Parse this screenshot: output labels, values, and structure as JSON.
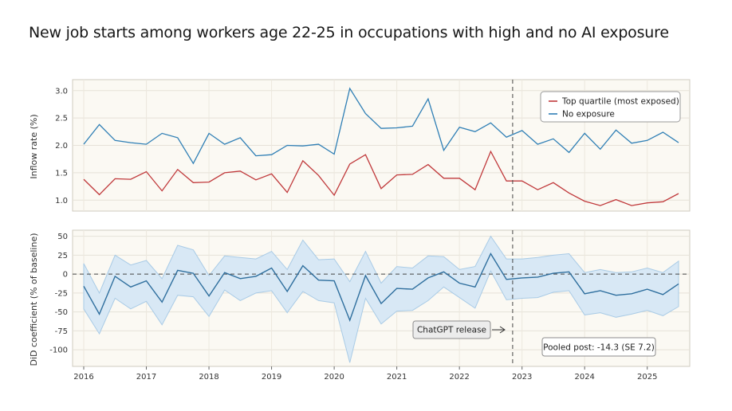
{
  "title": "New job starts among workers age 22-25 in occupations with high and no AI exposure",
  "colors": {
    "top": "#c0393b",
    "none": "#2f7fb5",
    "band": "#cfe3f4",
    "panel": "#fbf9f3",
    "grid": "#e4e1d7"
  },
  "chart_data": [
    {
      "type": "line",
      "ylabel": "Inflow rate (%)",
      "ylim": [
        0.8,
        3.2
      ],
      "yticks": [
        "1.0",
        "1.5",
        "2.0",
        "2.5",
        "3.0"
      ],
      "x": [
        2016.0,
        2016.25,
        2016.5,
        2016.75,
        2017.0,
        2017.25,
        2017.5,
        2017.75,
        2018.0,
        2018.25,
        2018.5,
        2018.75,
        2019.0,
        2019.25,
        2019.5,
        2019.75,
        2020.0,
        2020.25,
        2020.5,
        2020.75,
        2021.0,
        2021.25,
        2021.5,
        2021.75,
        2022.0,
        2022.25,
        2022.5,
        2022.75,
        2023.0,
        2023.25,
        2023.5,
        2023.75,
        2024.0,
        2024.25,
        2024.5,
        2024.75,
        2025.0,
        2025.25,
        2025.5
      ],
      "series": [
        {
          "name": "Top quartile (most exposed)",
          "values": [
            1.38,
            1.1,
            1.39,
            1.38,
            1.52,
            1.17,
            1.56,
            1.32,
            1.33,
            1.5,
            1.53,
            1.37,
            1.48,
            1.14,
            1.72,
            1.45,
            1.09,
            1.66,
            1.83,
            1.21,
            1.46,
            1.47,
            1.65,
            1.4,
            1.4,
            1.19,
            1.89,
            1.35,
            1.35,
            1.19,
            1.32,
            1.13,
            0.98,
            0.9,
            1.01,
            0.9,
            0.95,
            0.97,
            1.12
          ]
        },
        {
          "name": "No exposure",
          "values": [
            2.02,
            2.38,
            2.09,
            2.05,
            2.02,
            2.22,
            2.14,
            1.67,
            2.22,
            2.02,
            2.14,
            1.81,
            1.83,
            2.0,
            1.99,
            2.02,
            1.84,
            3.04,
            2.58,
            2.31,
            2.32,
            2.35,
            2.85,
            1.91,
            2.33,
            2.25,
            2.41,
            2.15,
            2.27,
            2.02,
            2.12,
            1.87,
            2.22,
            1.93,
            2.28,
            2.04,
            2.09,
            2.24,
            2.05
          ]
        }
      ],
      "legend": "top-right",
      "vline_x": 2022.85
    },
    {
      "type": "line",
      "ylabel": "DiD coefficient (% of baseline)",
      "ylim": [
        -122,
        58
      ],
      "yticks": [
        "50",
        "25",
        "0",
        "-25",
        "-50",
        "-75",
        "-100"
      ],
      "x": [
        2016.0,
        2016.25,
        2016.5,
        2016.75,
        2017.0,
        2017.25,
        2017.5,
        2017.75,
        2018.0,
        2018.25,
        2018.5,
        2018.75,
        2019.0,
        2019.25,
        2019.5,
        2019.75,
        2020.0,
        2020.25,
        2020.5,
        2020.75,
        2021.0,
        2021.25,
        2021.5,
        2021.75,
        2022.0,
        2022.25,
        2022.5,
        2022.75,
        2023.0,
        2023.25,
        2023.5,
        2023.75,
        2024.0,
        2024.25,
        2024.5,
        2024.75,
        2025.0,
        2025.25,
        2025.5
      ],
      "series": [
        {
          "values": [
            -16,
            -53,
            -3,
            -17,
            -9,
            -37,
            5,
            1,
            -29,
            2,
            -6,
            -3,
            8,
            -23,
            11,
            -8,
            -9,
            -61,
            -2,
            -39,
            -19,
            -20,
            -5,
            3,
            -12,
            -17,
            27,
            -7,
            -5,
            -4,
            1,
            3,
            -26,
            -22,
            -28,
            -26,
            -20,
            -27,
            -13
          ]
        },
        {
          "name": "ci_upper",
          "values": [
            14,
            -25,
            25,
            12,
            18,
            -6,
            38,
            32,
            -2,
            24,
            22,
            20,
            30,
            6,
            45,
            19,
            20,
            -10,
            30,
            -12,
            10,
            8,
            24,
            23,
            6,
            10,
            50,
            20,
            20,
            22,
            25,
            27,
            2,
            6,
            2,
            3,
            8,
            2,
            17
          ]
        },
        {
          "name": "ci_lower",
          "values": [
            -46,
            -79,
            -32,
            -46,
            -36,
            -67,
            -28,
            -30,
            -56,
            -21,
            -35,
            -25,
            -22,
            -51,
            -23,
            -35,
            -38,
            -117,
            -32,
            -66,
            -49,
            -48,
            -35,
            -17,
            -31,
            -45,
            4,
            -34,
            -32,
            -31,
            -24,
            -22,
            -54,
            -51,
            -57,
            -53,
            -48,
            -55,
            -43
          ]
        }
      ],
      "xticks": [
        "2016",
        "2017",
        "2018",
        "2019",
        "2020",
        "2021",
        "2022",
        "2023",
        "2024",
        "2025"
      ],
      "vline_x": 2022.85,
      "annotations": {
        "release": "ChatGPT release",
        "pooled": "Pooled post: -14.3 (SE 7.2)"
      }
    }
  ]
}
